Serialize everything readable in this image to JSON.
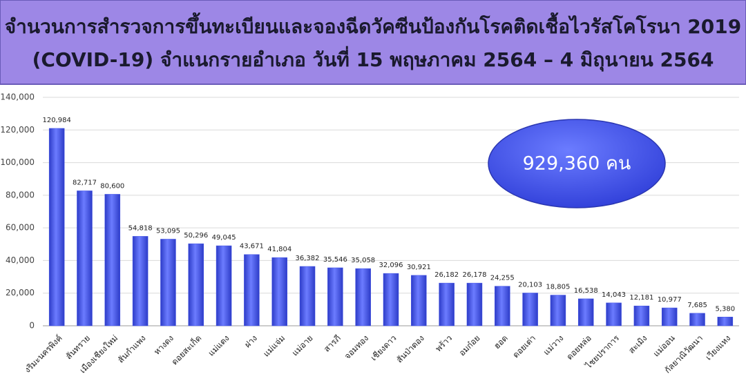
{
  "chart_data": {
    "type": "bar",
    "title_lines": [
      "จำนวนการสำรวจการขึ้นทะเบียนและจองฉีดวัคซีนป้องกันโรคติดเชื้อไวรัสโคโรนา 2019",
      "(COVID-19) จำแนกรายอำเภอ วันที่ 15 พฤษภาคม 2564 – 4 มิถุนายน 2564"
    ],
    "annotation": "929,360 คน",
    "categories": [
      "งริมะนครพิงค์",
      "สันทราย",
      "เมืองเชียงใหม่",
      "สันกำแพง",
      "หางดง",
      "ดอยสะเก็ด",
      "แม่แตง",
      "ฝาง",
      "แม่แจ่ม",
      "แม่อาย",
      "สารภี",
      "จอมทอง",
      "เชียงดาว",
      "สันป่าตอง",
      "พร้าว",
      "อมก๋อย",
      "ฮอด",
      "ดอยเต่า",
      "แม่วาง",
      "ดอยหล่อ",
      "ไชยปราการ",
      "สะเมิง",
      "แม่ออน",
      "กัลยาณิวัฒนา",
      "เวียงแหง"
    ],
    "values": [
      120984,
      82717,
      80600,
      54818,
      53095,
      50296,
      49045,
      43671,
      41804,
      36382,
      35546,
      35058,
      32096,
      30921,
      26182,
      26178,
      24255,
      20103,
      18805,
      16538,
      14043,
      12181,
      10977,
      7685,
      5380
    ],
    "value_labels": [
      "120,984",
      "82,717",
      "80,600",
      "54,818",
      "53,095",
      "50,296",
      "49,045",
      "43,671",
      "41,804",
      "36,382",
      "35,546",
      "35,058",
      "32,096",
      "30,921",
      "26,182",
      "26,178",
      "24,255",
      "20,103",
      "18,805",
      "16,538",
      "14,043",
      "12,181",
      "10,977",
      "7,685",
      "5,380"
    ],
    "color": "#4152e6",
    "ylim": [
      0,
      140000
    ],
    "yticks": [
      0,
      {
        "value": 20000,
        "label": "20,000"
      },
      {
        "value": 40000,
        "label": "40,000"
      },
      {
        "value": 60000,
        "label": "60,000"
      },
      {
        "value": 80000,
        "label": "80,000"
      },
      {
        "value": 100000,
        "label": "100,000"
      },
      {
        "value": 120000,
        "label": "120,000"
      },
      {
        "value": 140000,
        "label": "140,000"
      }
    ],
    "grid": true
  }
}
